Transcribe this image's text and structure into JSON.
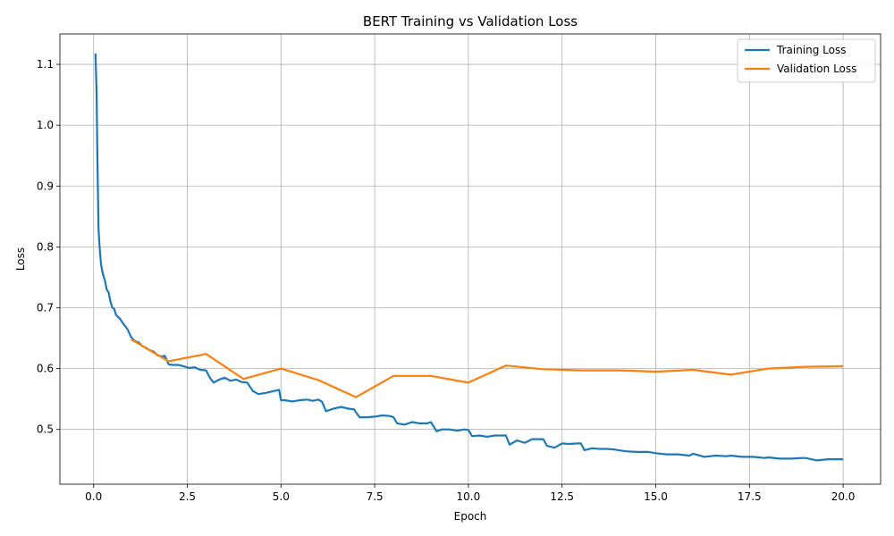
{
  "chart_data": {
    "type": "line",
    "title": "BERT Training vs Validation Loss",
    "xlabel": "Epoch",
    "ylabel": "Loss",
    "xlim": [
      -0.9,
      21.0
    ],
    "ylim": [
      0.41,
      1.15
    ],
    "xticks": [
      0.0,
      2.5,
      5.0,
      7.5,
      10.0,
      12.5,
      15.0,
      17.5,
      20.0
    ],
    "xtick_labels": [
      "0.0",
      "2.5",
      "5.0",
      "7.5",
      "10.0",
      "12.5",
      "15.0",
      "17.5",
      "20.0"
    ],
    "yticks": [
      0.5,
      0.6,
      0.7,
      0.8,
      0.9,
      1.0,
      1.1
    ],
    "ytick_labels": [
      "0.5",
      "0.6",
      "0.7",
      "0.8",
      "0.9",
      "1.0",
      "1.1"
    ],
    "grid": true,
    "legend_position": "top-right",
    "series": [
      {
        "name": "Training Loss",
        "color": "#1f77b4",
        "x": [
          0.05,
          0.08,
          0.1,
          0.13,
          0.16,
          0.2,
          0.25,
          0.3,
          0.35,
          0.4,
          0.45,
          0.5,
          0.55,
          0.6,
          0.7,
          0.8,
          0.9,
          1.0,
          1.1,
          1.2,
          1.3,
          1.4,
          1.5,
          1.6,
          1.7,
          1.8,
          1.9,
          2.0,
          2.1,
          2.25,
          2.4,
          2.55,
          2.7,
          2.85,
          3.0,
          3.1,
          3.2,
          3.35,
          3.5,
          3.65,
          3.8,
          3.95,
          4.1,
          4.25,
          4.4,
          4.6,
          4.8,
          4.95,
          5.0,
          5.1,
          5.3,
          5.5,
          5.7,
          5.85,
          6.0,
          6.1,
          6.2,
          6.4,
          6.6,
          6.8,
          6.95,
          7.0,
          7.1,
          7.3,
          7.5,
          7.7,
          7.9,
          8.0,
          8.1,
          8.3,
          8.5,
          8.7,
          8.9,
          9.0,
          9.15,
          9.3,
          9.5,
          9.7,
          9.9,
          10.0,
          10.1,
          10.3,
          10.5,
          10.7,
          10.9,
          11.0,
          11.1,
          11.3,
          11.5,
          11.7,
          11.9,
          12.0,
          12.1,
          12.3,
          12.5,
          12.7,
          12.9,
          13.0,
          13.1,
          13.3,
          13.5,
          13.7,
          13.9,
          14.0,
          14.2,
          14.5,
          14.8,
          15.0,
          15.3,
          15.6,
          15.9,
          16.0,
          16.3,
          16.6,
          16.9,
          17.0,
          17.3,
          17.6,
          17.9,
          18.0,
          18.3,
          18.6,
          18.9,
          19.0,
          19.3,
          19.6,
          19.9,
          20.0
        ],
        "y": [
          1.118,
          1.05,
          0.95,
          0.83,
          0.8,
          0.77,
          0.755,
          0.745,
          0.73,
          0.725,
          0.71,
          0.7,
          0.698,
          0.688,
          0.682,
          0.673,
          0.665,
          0.652,
          0.645,
          0.643,
          0.637,
          0.634,
          0.63,
          0.628,
          0.622,
          0.62,
          0.621,
          0.607,
          0.606,
          0.606,
          0.604,
          0.601,
          0.602,
          0.598,
          0.597,
          0.585,
          0.577,
          0.582,
          0.585,
          0.58,
          0.582,
          0.578,
          0.577,
          0.563,
          0.558,
          0.56,
          0.563,
          0.565,
          0.548,
          0.548,
          0.546,
          0.548,
          0.549,
          0.547,
          0.549,
          0.545,
          0.53,
          0.534,
          0.537,
          0.534,
          0.533,
          0.528,
          0.52,
          0.52,
          0.521,
          0.523,
          0.522,
          0.52,
          0.51,
          0.508,
          0.512,
          0.51,
          0.51,
          0.512,
          0.497,
          0.5,
          0.5,
          0.498,
          0.5,
          0.499,
          0.489,
          0.49,
          0.488,
          0.49,
          0.49,
          0.49,
          0.475,
          0.482,
          0.478,
          0.484,
          0.484,
          0.484,
          0.473,
          0.47,
          0.477,
          0.476,
          0.477,
          0.477,
          0.466,
          0.469,
          0.468,
          0.468,
          0.467,
          0.466,
          0.464,
          0.463,
          0.463,
          0.461,
          0.459,
          0.459,
          0.457,
          0.46,
          0.455,
          0.457,
          0.456,
          0.457,
          0.455,
          0.455,
          0.453,
          0.454,
          0.452,
          0.452,
          0.453,
          0.453,
          0.449,
          0.451,
          0.451,
          0.451
        ]
      },
      {
        "name": "Validation Loss",
        "color": "#ff7f0e",
        "x": [
          1,
          2,
          3,
          4,
          5,
          6,
          7,
          8,
          9,
          10,
          11,
          12,
          13,
          14,
          15,
          16,
          17,
          18,
          19,
          20
        ],
        "y": [
          0.648,
          0.612,
          0.624,
          0.583,
          0.6,
          0.581,
          0.553,
          0.588,
          0.588,
          0.577,
          0.605,
          0.599,
          0.597,
          0.597,
          0.595,
          0.598,
          0.59,
          0.6,
          0.603,
          0.604
        ]
      }
    ]
  }
}
